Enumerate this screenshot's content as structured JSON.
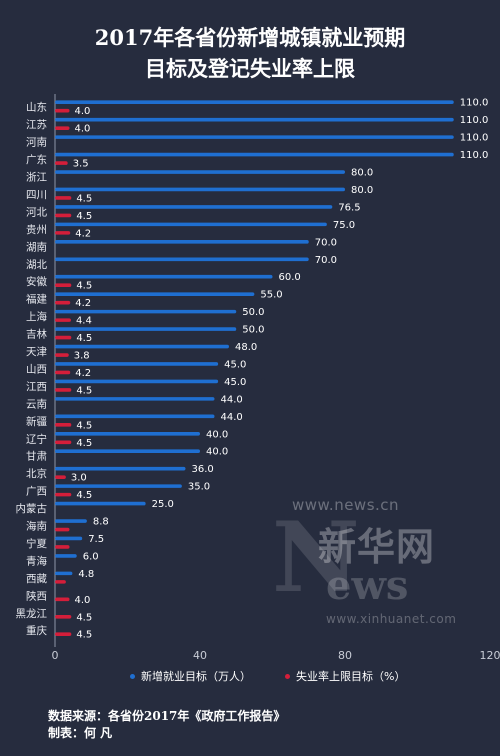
{
  "title_lines": [
    "2017年各省份新增城镇就业预期",
    "目标及登记失业率上限"
  ],
  "watermark": {
    "url": "www.news.cn",
    "brand_cn": "新华网",
    "n": "N",
    "ews": "ews",
    "url2": "www.xinhuanet.com"
  },
  "footer": {
    "source": "数据来源：各省份2017年《政府工作报告》",
    "author": "制表：何 凡"
  },
  "colors": {
    "background": "#262c3e",
    "employment": "#1f6fd1",
    "unemployment": "#d41e3a",
    "axis": "#8f96a8",
    "label": "#ffffff"
  },
  "chart_data": {
    "type": "bar",
    "orientation": "horizontal",
    "categories": [
      "山东",
      "江苏",
      "河南",
      "广东",
      "浙江",
      "四川",
      "河北",
      "贵州",
      "湖南",
      "湖北",
      "安徽",
      "福建",
      "上海",
      "吉林",
      "天津",
      "山西",
      "江西",
      "云南",
      "新疆",
      "辽宁",
      "甘肃",
      "北京",
      "广西",
      "内蒙古",
      "海南",
      "宁夏",
      "青海",
      "西藏",
      "陕西",
      "黑龙江",
      "重庆"
    ],
    "series": [
      {
        "name": "新增就业目标（万人）",
        "color": "#1f6fd1",
        "values": [
          110,
          110,
          110,
          110,
          80,
          80,
          76.5,
          75,
          70,
          70,
          60,
          55,
          50,
          50,
          48,
          45,
          45,
          44,
          44,
          40,
          40,
          36,
          35,
          25,
          8.8,
          7.5,
          6,
          4.8,
          null,
          null,
          null
        ],
        "labels": [
          "110.0",
          "110.0",
          "110.0",
          "110.0",
          "80.0",
          "80.0",
          "76.5",
          "75.0",
          "70.0",
          "70.0",
          "60.0",
          "55.0",
          "50.0",
          "50.0",
          "48.0",
          "45.0",
          "45.0",
          "44.0",
          "44.0",
          "40.0",
          "40.0",
          "36.0",
          "35.0",
          "25.0",
          "8.8",
          "7.5",
          "6.0",
          "4.8",
          null,
          null,
          null
        ]
      },
      {
        "name": "失业率上限目标（%）",
        "color": "#d41e3a",
        "values": [
          4,
          4,
          null,
          3.5,
          null,
          4.5,
          4.5,
          4.2,
          null,
          null,
          4.5,
          4.2,
          4.4,
          4.5,
          3.8,
          4.2,
          4.5,
          null,
          4.5,
          4.5,
          null,
          3,
          4.5,
          null,
          4,
          4,
          null,
          3,
          4,
          4.5,
          4.5
        ],
        "labels": [
          "4.0",
          "4.0",
          null,
          "3.5",
          null,
          "4.5",
          "4.5",
          "4.2",
          null,
          null,
          "4.5",
          "4.2",
          "4.4",
          "4.5",
          "3.8",
          "4.2",
          "4.5",
          null,
          "4.5",
          "4.5",
          null,
          "3.0",
          "4.5",
          null,
          null,
          null,
          null,
          null,
          "4.0",
          "4.5",
          "4.5"
        ]
      }
    ],
    "xlim": [
      0,
      120
    ],
    "xticks": [
      "0",
      "40",
      "80",
      "120"
    ],
    "legend_position": "bottom"
  }
}
